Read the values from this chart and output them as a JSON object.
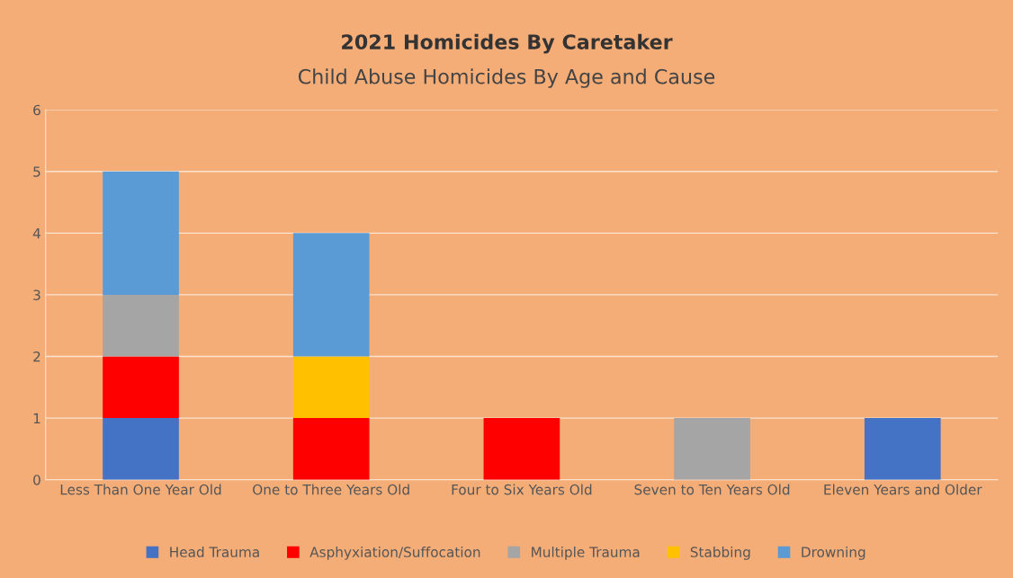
{
  "chart_data": {
    "type": "bar",
    "title": "2021 Homicides By Caretaker",
    "subtitle": "Child Abuse Homicides By Age and Cause",
    "categories": [
      "Less Than One Year Old",
      "One to Three Years Old",
      "Four to Six Years Old",
      "Seven to Ten Years Old",
      "Eleven Years and Older"
    ],
    "series": [
      {
        "name": "Head Trauma",
        "color": "#4472c4",
        "values": [
          1,
          0,
          0,
          0,
          1
        ]
      },
      {
        "name": "Asphyxiation/Suffocation",
        "color": "#ff0000",
        "values": [
          1,
          1,
          1,
          0,
          0
        ]
      },
      {
        "name": "Multiple Trauma",
        "color": "#a5a5a5",
        "values": [
          1,
          0,
          0,
          1,
          0
        ]
      },
      {
        "name": "Stabbing",
        "color": "#ffc000",
        "values": [
          0,
          1,
          0,
          0,
          0
        ]
      },
      {
        "name": "Drowning",
        "color": "#5b9bd5",
        "values": [
          2,
          2,
          0,
          0,
          0
        ]
      }
    ],
    "stacked": true,
    "ylim": [
      0,
      6
    ],
    "yticks": [
      0,
      1,
      2,
      3,
      4,
      5,
      6
    ],
    "grid": "y",
    "legend": "bottom"
  }
}
